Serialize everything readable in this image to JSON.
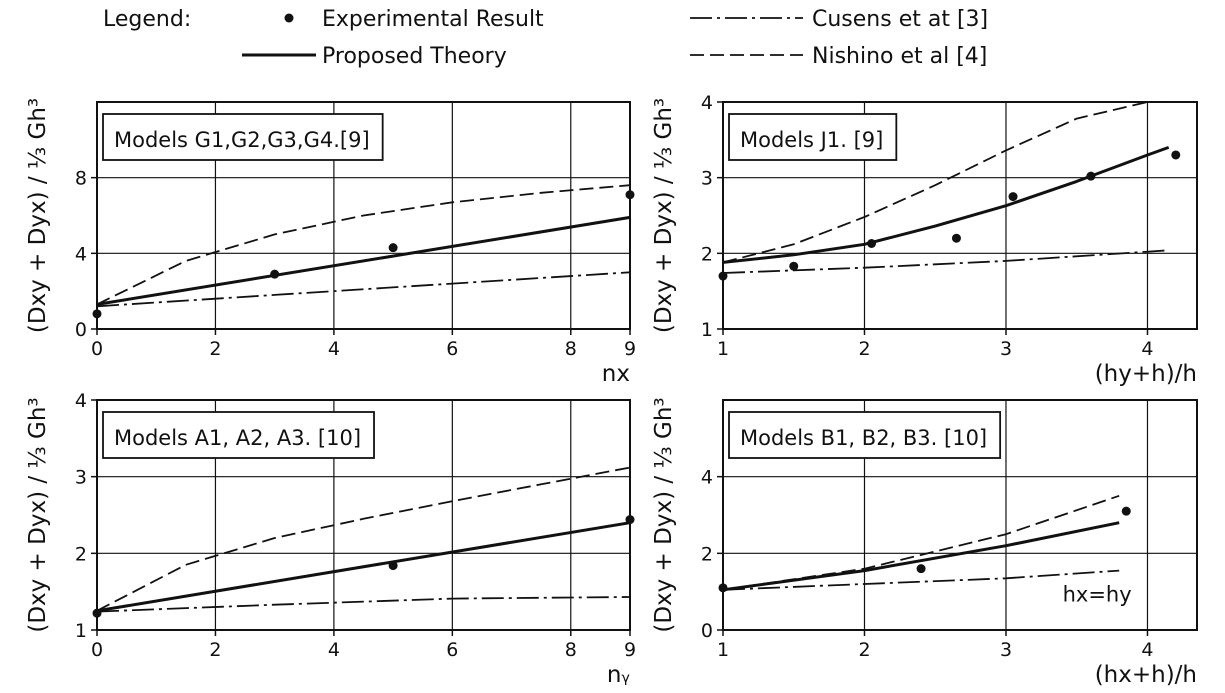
{
  "legend": {
    "title": "Legend:",
    "items": [
      {
        "label": "Experimental Result",
        "symbol": "dot"
      },
      {
        "label": "Proposed Theory",
        "symbol": "solid"
      },
      {
        "label": "Cusens et at [3]",
        "symbol": "dashdot"
      },
      {
        "label": "Nishino et al [4]",
        "symbol": "dashed"
      }
    ]
  },
  "chart_data": [
    {
      "type": "line",
      "note": "Models G1,G2,G3,G4.[9]",
      "xlabel": "nx",
      "ylabel": "(Dxy + Dyx) / ⅓ Gh³",
      "xlim": [
        0,
        9
      ],
      "ylim": [
        0,
        12
      ],
      "xticks": [
        0,
        2,
        4,
        6,
        8,
        9
      ],
      "xtick_labels": [
        "0",
        "2",
        "4",
        "6",
        "8",
        "9"
      ],
      "yticks": [
        0,
        4,
        8
      ],
      "ytick_labels": [
        "0",
        "4",
        "8"
      ],
      "hgrid": [
        4,
        8
      ],
      "vgrid": [
        2,
        4,
        6,
        8
      ],
      "points": {
        "x": [
          0,
          3,
          5,
          9
        ],
        "y": [
          0.8,
          2.9,
          4.3,
          7.1
        ]
      },
      "series": [
        {
          "style": "solid",
          "x": [
            0,
            9
          ],
          "y": [
            1.3,
            5.9
          ]
        },
        {
          "style": "dashed",
          "x": [
            0,
            1.5,
            3,
            4.5,
            6,
            7.5,
            9
          ],
          "y": [
            1.3,
            3.6,
            5.0,
            6.0,
            6.7,
            7.2,
            7.6
          ]
        },
        {
          "style": "dashdot",
          "x": [
            0,
            3,
            6,
            9
          ],
          "y": [
            1.2,
            1.8,
            2.4,
            3.0
          ]
        }
      ],
      "annotation": ""
    },
    {
      "type": "line",
      "note": "Models J1. [9]",
      "xlabel": "(hy+h)/h",
      "ylabel": "(Dxy + Dyx) / ⅓ Gh³",
      "xlim": [
        1,
        4.35
      ],
      "ylim": [
        1,
        4
      ],
      "xticks": [
        1,
        2,
        3,
        4
      ],
      "xtick_labels": [
        "1",
        "2",
        "3",
        "4"
      ],
      "yticks": [
        1,
        2,
        3,
        4
      ],
      "ytick_labels": [
        "1",
        "2",
        "3",
        "4"
      ],
      "hgrid": [
        2,
        3
      ],
      "vgrid": [
        2,
        3,
        4
      ],
      "points": {
        "x": [
          1,
          1.5,
          2.05,
          2.65,
          3.05,
          3.6,
          4.2
        ],
        "y": [
          1.7,
          1.83,
          2.13,
          2.2,
          2.75,
          3.02,
          3.3
        ]
      },
      "series": [
        {
          "style": "solid",
          "x": [
            1,
            1.5,
            2,
            2.5,
            3,
            3.5,
            4,
            4.15
          ],
          "y": [
            1.88,
            1.98,
            2.12,
            2.36,
            2.63,
            2.95,
            3.3,
            3.4
          ]
        },
        {
          "style": "dashed",
          "x": [
            1,
            1.5,
            2,
            2.5,
            3,
            3.5,
            4,
            4.15
          ],
          "y": [
            1.88,
            2.12,
            2.48,
            2.9,
            3.36,
            3.78,
            4.02,
            4.02
          ]
        },
        {
          "style": "dashdot",
          "x": [
            1,
            2,
            3,
            4.15
          ],
          "y": [
            1.74,
            1.81,
            1.9,
            2.04
          ]
        }
      ],
      "annotation": ""
    },
    {
      "type": "line",
      "note": "Models A1, A2, A3. [10]",
      "xlabel": "nᵧ",
      "ylabel": "(Dxy + Dyx) / ⅓ Gh³",
      "xlim": [
        0,
        9
      ],
      "ylim": [
        1,
        4
      ],
      "xticks": [
        0,
        2,
        4,
        6,
        8,
        9
      ],
      "xtick_labels": [
        "0",
        "2",
        "4",
        "6",
        "8",
        "9"
      ],
      "yticks": [
        1,
        2,
        3,
        4
      ],
      "ytick_labels": [
        "1",
        "2",
        "3",
        "4"
      ],
      "hgrid": [
        2,
        3
      ],
      "vgrid": [
        2,
        4,
        6,
        8
      ],
      "points": {
        "x": [
          0,
          5,
          9
        ],
        "y": [
          1.22,
          1.84,
          2.44
        ]
      },
      "series": [
        {
          "style": "solid",
          "x": [
            0,
            9
          ],
          "y": [
            1.25,
            2.4
          ]
        },
        {
          "style": "dashed",
          "x": [
            0,
            1.5,
            3,
            4.5,
            6,
            7.5,
            9
          ],
          "y": [
            1.25,
            1.85,
            2.2,
            2.45,
            2.68,
            2.9,
            3.12
          ]
        },
        {
          "style": "dashdot",
          "x": [
            0,
            3,
            6,
            9
          ],
          "y": [
            1.24,
            1.33,
            1.41,
            1.43
          ]
        }
      ],
      "annotation": ""
    },
    {
      "type": "line",
      "note": "Models B1, B2, B3. [10]",
      "xlabel": "(hx+h)/h",
      "ylabel": "(Dxy + Dyx) / ⅓ Gh³",
      "xlim": [
        1,
        4.35
      ],
      "ylim": [
        0,
        6
      ],
      "xticks": [
        1,
        2,
        3,
        4
      ],
      "xtick_labels": [
        "1",
        "2",
        "3",
        "4"
      ],
      "yticks": [
        0,
        2,
        4
      ],
      "ytick_labels": [
        "0",
        "2",
        "4"
      ],
      "hgrid": [
        2,
        4
      ],
      "vgrid": [
        2,
        3,
        4
      ],
      "points": {
        "x": [
          1,
          2.4,
          3.85
        ],
        "y": [
          1.1,
          1.6,
          3.1
        ]
      },
      "series": [
        {
          "style": "solid",
          "x": [
            1,
            2,
            3,
            3.8
          ],
          "y": [
            1.05,
            1.55,
            2.2,
            2.8
          ]
        },
        {
          "style": "dashed",
          "x": [
            1,
            2,
            3,
            3.8
          ],
          "y": [
            1.05,
            1.6,
            2.5,
            3.5
          ]
        },
        {
          "style": "dashdot",
          "x": [
            1,
            2,
            3,
            3.8
          ],
          "y": [
            1.05,
            1.2,
            1.35,
            1.55
          ]
        }
      ],
      "annotation": "hx=hy"
    }
  ]
}
